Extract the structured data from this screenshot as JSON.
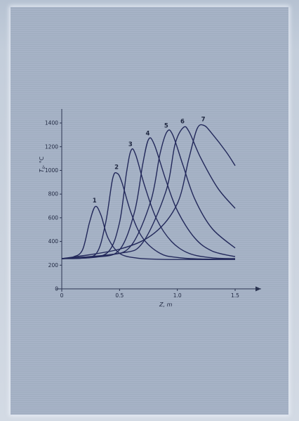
{
  "chart_data": {
    "type": "line",
    "title": "",
    "xlabel": "Z, m",
    "ylabel": "T_s, °C",
    "xlim": [
      0,
      1.62
    ],
    "ylim": [
      0,
      1500
    ],
    "x_ticks": [
      0,
      0.5,
      1.0,
      1.5
    ],
    "x_tick_labels": [
      "0",
      "0.5",
      "1.0",
      "1.5"
    ],
    "y_ticks": [
      0,
      200,
      400,
      600,
      800,
      1000,
      1200,
      1400
    ],
    "y_tick_labels": [
      "0",
      "200",
      "400",
      "600",
      "800",
      "1000",
      "1200",
      "1400"
    ],
    "grid": false,
    "series": [
      {
        "name": "1",
        "x": [
          0,
          0.1,
          0.18,
          0.24,
          0.29,
          0.34,
          0.4,
          0.5,
          0.65,
          0.85,
          1.1,
          1.5
        ],
        "values": [
          255,
          270,
          330,
          560,
          695,
          620,
          430,
          300,
          260,
          250,
          248,
          248
        ]
      },
      {
        "name": "2",
        "x": [
          0,
          0.15,
          0.3,
          0.38,
          0.44,
          0.48,
          0.52,
          0.6,
          0.7,
          0.85,
          1.0,
          1.2,
          1.5
        ],
        "values": [
          255,
          265,
          300,
          560,
          930,
          975,
          900,
          640,
          430,
          300,
          265,
          252,
          250
        ]
      },
      {
        "name": "3",
        "x": [
          0,
          0.2,
          0.4,
          0.5,
          0.56,
          0.6,
          0.64,
          0.72,
          0.82,
          0.95,
          1.1,
          1.3,
          1.5
        ],
        "values": [
          255,
          262,
          310,
          560,
          980,
          1170,
          1130,
          860,
          590,
          400,
          300,
          262,
          255
        ]
      },
      {
        "name": "4",
        "x": [
          0,
          0.3,
          0.5,
          0.63,
          0.7,
          0.75,
          0.8,
          0.9,
          1.0,
          1.15,
          1.3,
          1.5
        ],
        "values": [
          255,
          268,
          330,
          650,
          1050,
          1260,
          1220,
          920,
          660,
          430,
          320,
          272
        ]
      },
      {
        "name": "5",
        "x": [
          0,
          0.4,
          0.6,
          0.77,
          0.85,
          0.91,
          0.96,
          1.05,
          1.15,
          1.3,
          1.5
        ],
        "values": [
          255,
          285,
          365,
          740,
          1140,
          1325,
          1300,
          1040,
          760,
          510,
          345
        ]
      },
      {
        "name": "6",
        "x": [
          0,
          0.5,
          0.7,
          0.9,
          0.98,
          1.05,
          1.1,
          1.2,
          1.35,
          1.5
        ],
        "values": [
          255,
          300,
          390,
          820,
          1220,
          1360,
          1330,
          1110,
          850,
          680
        ]
      },
      {
        "name": "7",
        "x": [
          0,
          0.5,
          0.8,
          1.0,
          1.1,
          1.17,
          1.23,
          1.3,
          1.42,
          1.5
        ],
        "values": [
          255,
          335,
          470,
          720,
          1100,
          1350,
          1380,
          1310,
          1160,
          1040
        ]
      }
    ]
  }
}
